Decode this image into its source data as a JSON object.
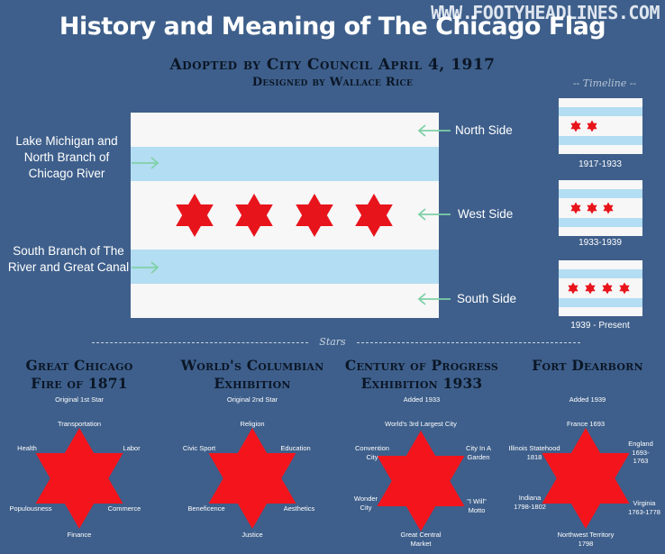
{
  "title": "History and Meaning of The Chicago Flag",
  "watermark": "WWW.FOOTYHEADLINES.COM",
  "subtitle": "Adopted by City Council April 4, 1917",
  "designer": "Designed by Wallace Rice",
  "timeline_label": "-- Timeline --",
  "left_labels": {
    "top": "Lake Michigan and North Branch of Chicago River",
    "bottom": "South Branch of The River and Great Canal"
  },
  "right_labels": {
    "north": "North Side",
    "west": "West Side",
    "south": "South Side"
  },
  "timeline": [
    {
      "years": "1917-1933",
      "stars": 2
    },
    {
      "years": "1933-1939",
      "stars": 3
    },
    {
      "years": "1939 - Present",
      "stars": 4
    }
  ],
  "stars_label": "Stars",
  "colors": {
    "background": "#3e5f8b",
    "stripe": "#b3ddf2",
    "star": "#e8141c",
    "heading": "#0b1626"
  },
  "star_sections": [
    {
      "heading1": "Great Chicago",
      "heading2": "Fire of 1871",
      "sub": "Original 1st Star",
      "points": {
        "top": "Transportation",
        "upper_right": "Labor",
        "lower_right": "Commerce",
        "bottom": "Finance",
        "lower_left": "Populousness",
        "upper_left": "Health"
      }
    },
    {
      "heading1": "World's Columbian",
      "heading2": "Exhibition",
      "sub": "Original 2nd Star",
      "points": {
        "top": "Religion",
        "upper_right": "Education",
        "lower_right": "Aesthetics",
        "bottom": "Justice",
        "lower_left": "Beneficence",
        "upper_left": "Civic Sport"
      }
    },
    {
      "heading1": "Century of Progress",
      "heading2": "Exhibition 1933",
      "sub": "Added 1933",
      "points": {
        "top": "World's 3rd Largest City",
        "upper_right": "City In A Garden",
        "lower_right": "\"I Will\" Motto",
        "bottom": "Great Central Market",
        "lower_left": "Wonder City",
        "upper_left": "Convention City"
      }
    },
    {
      "heading1": "Fort Dearborn",
      "heading2": "",
      "sub": "Added 1939",
      "points": {
        "top": "France 1693",
        "upper_right": "England 1693-1763",
        "lower_right": "Virginia 1763-1778",
        "bottom": "Northwest Territory 1798",
        "lower_left": "Indiana 1798-1802",
        "upper_left": "Illinois Statehood 1818"
      }
    }
  ]
}
